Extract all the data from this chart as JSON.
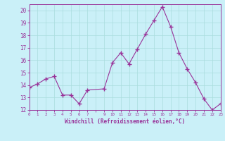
{
  "x_values": [
    0,
    1,
    2,
    3,
    4,
    5,
    6,
    7,
    9,
    10,
    11,
    12,
    13,
    14,
    15,
    16,
    17,
    18,
    19,
    20,
    21,
    22,
    23
  ],
  "y_values": [
    13.8,
    14.1,
    14.5,
    14.7,
    13.2,
    13.2,
    12.5,
    13.6,
    13.7,
    15.8,
    16.6,
    15.7,
    16.9,
    18.1,
    19.2,
    20.3,
    18.7,
    16.6,
    15.3,
    14.2,
    12.9,
    12.0,
    12.5
  ],
  "xlim": [
    0,
    23
  ],
  "ylim": [
    12,
    20.5
  ],
  "yticks": [
    12,
    13,
    14,
    15,
    16,
    17,
    18,
    19,
    20
  ],
  "xtick_positions": [
    0,
    1,
    2,
    3,
    4,
    5,
    6,
    7,
    8,
    9,
    10,
    11,
    12,
    13,
    14,
    15,
    16,
    17,
    18,
    19,
    20,
    21,
    22,
    23
  ],
  "xtick_labels": [
    "0",
    "1",
    "2",
    "3",
    "4",
    "5",
    "6",
    "7",
    "",
    "9",
    "10",
    "11",
    "12",
    "13",
    "14",
    "15",
    "16",
    "17",
    "18",
    "19",
    "20",
    "21",
    "22",
    "23"
  ],
  "xlabel": "Windchill (Refroidissement éolien,°C)",
  "line_color": "#993399",
  "marker_color": "#993399",
  "bg_color": "#caf0f8",
  "grid_color": "#aadddd",
  "tick_color": "#993399",
  "label_color": "#993399"
}
